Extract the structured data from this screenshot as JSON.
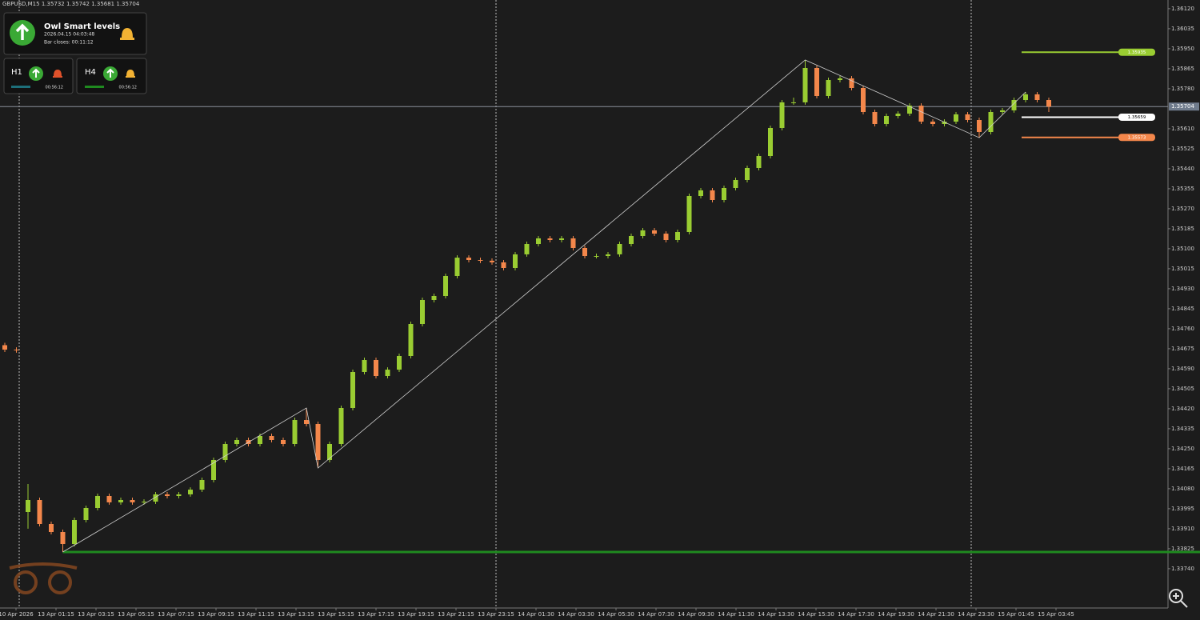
{
  "chart_data": {
    "type": "candlestick",
    "symbol": "GBPUSD,M15",
    "up_color": "#9acd32",
    "down_color": "#f4874b",
    "ylim": [
      1.33573,
      1.36157
    ],
    "yticks": [
      {
        "value": 1.3612,
        "label": "1.36120"
      },
      1.36035,
      {
        "value": 1.3595,
        "label": "1.35950"
      },
      1.35865,
      {
        "value": 1.3578,
        "label": "1.35780"
      },
      {
        "value": 1.3561,
        "label": "1.35610"
      },
      1.35525,
      {
        "value": 1.3544,
        "label": "1.35440"
      },
      1.35355,
      {
        "value": 1.3527,
        "label": "1.35270"
      },
      1.35185,
      {
        "value": 1.351,
        "label": "1.35100"
      },
      1.35015,
      {
        "value": 1.3493,
        "label": "1.34930"
      },
      1.34845,
      {
        "value": 1.3476,
        "label": "1.34760"
      },
      1.34675,
      {
        "value": 1.3459,
        "label": "1.34590"
      },
      1.34505,
      {
        "value": 1.3442,
        "label": "1.34420"
      },
      1.34335,
      {
        "value": 1.3425,
        "label": "1.34250"
      },
      1.34165,
      {
        "value": 1.3408,
        "label": "1.34080"
      },
      1.33995,
      {
        "value": 1.3391,
        "label": "1.33910"
      },
      1.33825,
      {
        "value": 1.3374,
        "label": "1.33740"
      }
    ],
    "categories": [
      "10 Apr 2026",
      "13 Apr 01:15",
      "13 Apr 03:15",
      "13 Apr 05:15",
      "13 Apr 07:15",
      "13 Apr 09:15",
      "13 Apr 11:15",
      "13 Apr 13:15",
      "13 Apr 15:15",
      "13 Apr 17:15",
      "13 Apr 19:15",
      "13 Apr 21:15",
      "13 Apr 23:15",
      "14 Apr 01:30",
      "14 Apr 03:30",
      "14 Apr 05:30",
      "14 Apr 07:30",
      "14 Apr 09:30",
      "14 Apr 11:30",
      "14 Apr 13:30",
      "14 Apr 15:30",
      "14 Apr 17:30",
      "14 Apr 19:30",
      "14 Apr 21:30",
      "14 Apr 23:30",
      "15 Apr 01:45",
      "15 Apr 03:45"
    ],
    "candles": [
      [
        1.3469,
        1.347,
        1.34661,
        1.34671
      ],
      [
        1.34671,
        1.34681,
        1.34658,
        1.34668
      ],
      [
        1.33981,
        1.341,
        1.3391,
        1.34032
      ],
      [
        1.34032,
        1.34042,
        1.3392,
        1.3393
      ],
      [
        1.3393,
        1.3394,
        1.33886,
        1.33896
      ],
      [
        1.33896,
        1.33906,
        1.33811,
        1.33845
      ],
      [
        1.33845,
        1.33957,
        1.33835,
        1.33947
      ],
      [
        1.33947,
        1.34008,
        1.33937,
        1.33998
      ],
      [
        1.33998,
        1.34059,
        1.33988,
        1.34049
      ],
      [
        1.34049,
        1.34059,
        1.34012,
        1.34022
      ],
      [
        1.34022,
        1.34042,
        1.34012,
        1.34032
      ],
      [
        1.34032,
        1.34042,
        1.34012,
        1.34022
      ],
      [
        1.34022,
        1.34035,
        1.34012,
        1.34025
      ],
      [
        1.34025,
        1.34066,
        1.34015,
        1.34056
      ],
      [
        1.34056,
        1.34066,
        1.34039,
        1.34049
      ],
      [
        1.34049,
        1.34066,
        1.34039,
        1.34056
      ],
      [
        1.34056,
        1.34086,
        1.34046,
        1.34076
      ],
      [
        1.34076,
        1.34127,
        1.34066,
        1.34117
      ],
      [
        1.34117,
        1.34212,
        1.34107,
        1.34202
      ],
      [
        1.34202,
        1.3428,
        1.34192,
        1.3427
      ],
      [
        1.3427,
        1.34297,
        1.3426,
        1.34287
      ],
      [
        1.34287,
        1.34297,
        1.3426,
        1.3427
      ],
      [
        1.3427,
        1.34314,
        1.3426,
        1.34304
      ],
      [
        1.34304,
        1.34314,
        1.34277,
        1.34287
      ],
      [
        1.34287,
        1.34297,
        1.3426,
        1.3427
      ],
      [
        1.3427,
        1.34382,
        1.3426,
        1.34372
      ],
      [
        1.34372,
        1.34423,
        1.34345,
        1.34355
      ],
      [
        1.34355,
        1.34365,
        1.34168,
        1.34202
      ],
      [
        1.34202,
        1.3428,
        1.34192,
        1.3427
      ],
      [
        1.3427,
        1.34433,
        1.3426,
        1.34423
      ],
      [
        1.34423,
        1.34586,
        1.34413,
        1.34576
      ],
      [
        1.34576,
        1.34637,
        1.34566,
        1.34627
      ],
      [
        1.34627,
        1.34637,
        1.34549,
        1.34559
      ],
      [
        1.34559,
        1.34596,
        1.34549,
        1.34586
      ],
      [
        1.34586,
        1.34654,
        1.34576,
        1.34644
      ],
      [
        1.34644,
        1.3479,
        1.34634,
        1.3478
      ],
      [
        1.3478,
        1.34892,
        1.3477,
        1.34882
      ],
      [
        1.34882,
        1.34909,
        1.34872,
        1.34899
      ],
      [
        1.34899,
        1.34994,
        1.34889,
        1.34984
      ],
      [
        1.34984,
        1.35072,
        1.34974,
        1.35062
      ],
      [
        1.35062,
        1.35072,
        1.35042,
        1.35052
      ],
      [
        1.35052,
        1.35062,
        1.35039,
        1.35049
      ],
      [
        1.35049,
        1.35059,
        1.35032,
        1.35042
      ],
      [
        1.35042,
        1.35052,
        1.35008,
        1.35018
      ],
      [
        1.35018,
        1.35086,
        1.35008,
        1.35076
      ],
      [
        1.35076,
        1.3513,
        1.35066,
        1.3512
      ],
      [
        1.3512,
        1.35154,
        1.3511,
        1.35144
      ],
      [
        1.35144,
        1.35154,
        1.35127,
        1.35137
      ],
      [
        1.35137,
        1.35154,
        1.35127,
        1.35144
      ],
      [
        1.35144,
        1.35154,
        1.35093,
        1.35103
      ],
      [
        1.35103,
        1.35113,
        1.35059,
        1.35069
      ],
      [
        1.35069,
        1.35079,
        1.35059,
        1.35069
      ],
      [
        1.35069,
        1.35086,
        1.35059,
        1.35076
      ],
      [
        1.35076,
        1.3513,
        1.35066,
        1.3512
      ],
      [
        1.3512,
        1.35164,
        1.3511,
        1.35154
      ],
      [
        1.35154,
        1.35188,
        1.35144,
        1.35178
      ],
      [
        1.35178,
        1.35188,
        1.35154,
        1.35164
      ],
      [
        1.35164,
        1.35174,
        1.35127,
        1.35137
      ],
      [
        1.35137,
        1.35181,
        1.35127,
        1.35171
      ],
      [
        1.35171,
        1.35334,
        1.35161,
        1.35324
      ],
      [
        1.35324,
        1.35358,
        1.35314,
        1.35348
      ],
      [
        1.35348,
        1.35358,
        1.35297,
        1.35307
      ],
      [
        1.35307,
        1.35368,
        1.35297,
        1.35358
      ],
      [
        1.35358,
        1.35402,
        1.35348,
        1.35392
      ],
      [
        1.35392,
        1.35453,
        1.35382,
        1.35443
      ],
      [
        1.35443,
        1.35504,
        1.35433,
        1.35494
      ],
      [
        1.35494,
        1.35623,
        1.35484,
        1.35613
      ],
      [
        1.35613,
        1.35732,
        1.35603,
        1.35722
      ],
      [
        1.35722,
        1.35742,
        1.35712,
        1.35722
      ],
      [
        1.35722,
        1.35902,
        1.35712,
        1.35868
      ],
      [
        1.35868,
        1.35878,
        1.35739,
        1.35749
      ],
      [
        1.35749,
        1.35827,
        1.35739,
        1.35817
      ],
      [
        1.35817,
        1.35834,
        1.35807,
        1.35824
      ],
      [
        1.35824,
        1.35834,
        1.35773,
        1.35783
      ],
      [
        1.35783,
        1.35793,
        1.35671,
        1.35681
      ],
      [
        1.35681,
        1.35691,
        1.3562,
        1.3563
      ],
      [
        1.3563,
        1.35674,
        1.3562,
        1.35664
      ],
      [
        1.35664,
        1.35684,
        1.35654,
        1.35674
      ],
      [
        1.35674,
        1.35718,
        1.35664,
        1.35708
      ],
      [
        1.35708,
        1.35718,
        1.3563,
        1.3564
      ],
      [
        1.3564,
        1.3565,
        1.3562,
        1.3563
      ],
      [
        1.3563,
        1.3565,
        1.3562,
        1.3564
      ],
      [
        1.3564,
        1.35681,
        1.3563,
        1.35671
      ],
      [
        1.35671,
        1.35681,
        1.35637,
        1.35647
      ],
      [
        1.35647,
        1.35657,
        1.35572,
        1.35596
      ],
      [
        1.35596,
        1.35691,
        1.35586,
        1.35681
      ],
      [
        1.35681,
        1.35698,
        1.35671,
        1.35688
      ],
      [
        1.35688,
        1.35742,
        1.35678,
        1.35732
      ],
      [
        1.35732,
        1.35766,
        1.35722,
        1.35756
      ],
      [
        1.35756,
        1.35766,
        1.35722,
        1.35732
      ],
      [
        1.35732,
        1.35742,
        1.35681,
        1.35704
      ]
    ],
    "zigzag": {
      "index": [
        5,
        26,
        27,
        69,
        84,
        88
      ],
      "values": [
        1.33811,
        1.34423,
        1.34168,
        1.35902,
        1.35572,
        1.35766
      ],
      "color": "#d0d0d0"
    },
    "support_line": {
      "value": 1.33811,
      "color": "#1f8a1f"
    },
    "levels": [
      {
        "value": 1.35935,
        "color": "#9acd32"
      },
      {
        "value": 1.35659,
        "color": "#ffffff"
      },
      {
        "value": 1.35573,
        "color": "#f4874b"
      }
    ],
    "panel": {
      "title": "Owl Smart levels",
      "time": "2026.04.15 04:03:48",
      "bar_closes": "Bar closes: 00:11:12",
      "frames": [
        {
          "name": "H1",
          "timer": "00:56:12"
        },
        {
          "name": "H4",
          "timer": "00:56:12"
        }
      ]
    }
  }
}
